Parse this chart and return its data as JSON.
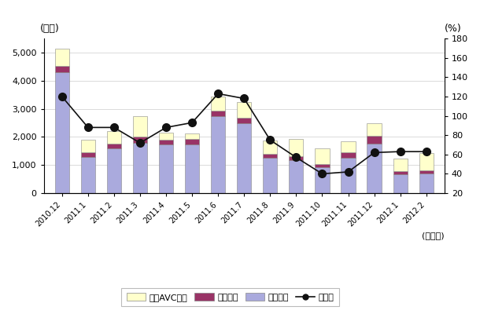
{
  "categories": [
    "2010.12",
    "2011.1",
    "2011.2",
    "2011.3",
    "2011.4",
    "2011.5",
    "2011.6",
    "2011.7",
    "2011.8",
    "2011.9",
    "2011.10",
    "2011.11",
    "2011.12",
    "2012.1",
    "2012.2"
  ],
  "eizo": [
    4300,
    1280,
    1580,
    1780,
    1720,
    1730,
    2750,
    2500,
    1270,
    1180,
    920,
    1270,
    1760,
    670,
    690
  ],
  "onsei": [
    220,
    180,
    180,
    230,
    190,
    190,
    190,
    180,
    130,
    130,
    110,
    180,
    290,
    120,
    130
  ],
  "car_avc": [
    620,
    450,
    450,
    720,
    250,
    200,
    510,
    570,
    470,
    610,
    570,
    400,
    440,
    440,
    610
  ],
  "yoy": [
    120,
    88,
    88,
    72,
    88,
    93,
    123,
    118,
    75,
    57,
    40,
    42,
    62,
    63,
    63
  ],
  "bar_color_eizo": "#aaaadd",
  "bar_color_onsei": "#993366",
  "bar_color_car": "#ffffcc",
  "line_color": "#111111",
  "left_ylabel": "(億円)",
  "right_ylabel": "(%)",
  "xlabel": "(年・月)",
  "ylim_left": [
    0,
    5500
  ],
  "ylim_right": [
    20,
    180
  ],
  "yticks_left": [
    0,
    1000,
    2000,
    3000,
    4000,
    5000
  ],
  "yticks_right": [
    20,
    40,
    60,
    80,
    100,
    120,
    140,
    160,
    180
  ],
  "legend_labels": [
    "カーAVC機器",
    "音声機器",
    "映像機器",
    "前年比"
  ],
  "bg_color": "#ffffff",
  "plot_bg_color": "#ffffff",
  "grid_color": "#cccccc"
}
